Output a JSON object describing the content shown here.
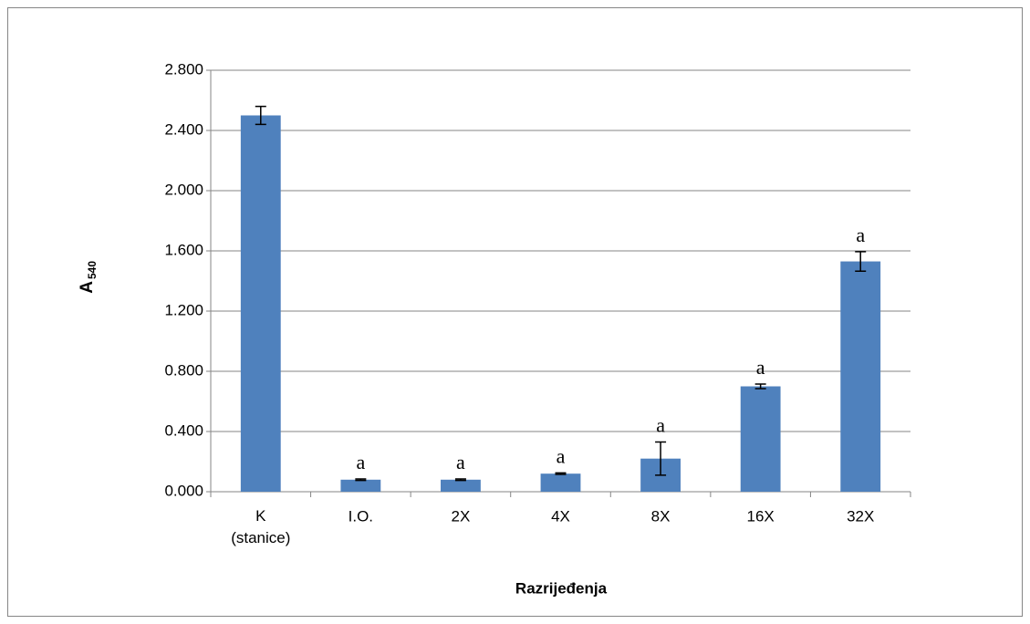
{
  "chart_data": {
    "type": "bar",
    "x_label": "Razrijeđenja",
    "y_label": "A",
    "y_label_sub": "540",
    "categories": [
      "K (stanice)",
      "I.O.",
      "2X",
      "4X",
      "8X",
      "16X",
      "32X"
    ],
    "values": [
      2.5,
      0.08,
      0.08,
      0.12,
      0.22,
      0.7,
      1.53
    ],
    "errors": [
      0.06,
      0.005,
      0.005,
      0.005,
      0.11,
      0.015,
      0.065
    ],
    "annotations": [
      null,
      "a",
      "a",
      "a",
      "a",
      "a",
      "a"
    ],
    "color": "#4f81bd",
    "ylim": [
      0,
      2.8
    ],
    "yticks": [
      {
        "value": 0,
        "label": "0.000"
      },
      {
        "value": 0.4,
        "label": "0.400"
      },
      {
        "value": 0.8,
        "label": "0.800"
      },
      {
        "value": 1.2,
        "label": "1.200"
      },
      {
        "value": 1.6,
        "label": "1.600"
      },
      {
        "value": 2.0,
        "label": "2.000"
      },
      {
        "value": 2.4,
        "label": "2.400"
      },
      {
        "value": 2.8,
        "label": "2.800"
      }
    ],
    "grid": true
  }
}
